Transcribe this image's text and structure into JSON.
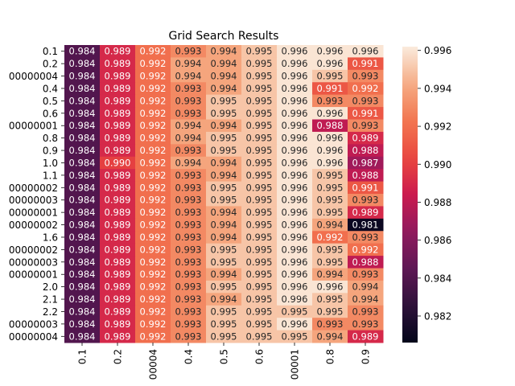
{
  "chart_data": {
    "type": "heatmap",
    "title": "Grid Search Results",
    "xlabel": "",
    "ylabel": "",
    "x_categories": [
      "0.1",
      "0.2",
      "00004",
      "0.4",
      "0.5",
      "0.6",
      "00001",
      "0.8",
      "0.9"
    ],
    "y_categories": [
      "0.1",
      "0.2",
      "00000004",
      "0.4",
      "0.5",
      "0.6",
      "00000001",
      "0.8",
      "0.9",
      "1.0",
      "1.1",
      "00000002",
      "00000003",
      "00000001",
      "00000002",
      "1.6",
      "00000002",
      "00000003",
      "00000001",
      "2.0",
      "2.1",
      "2.2",
      "00000003",
      "00000004"
    ],
    "values": [
      [
        0.984,
        0.989,
        0.992,
        0.993,
        0.994,
        0.995,
        0.996,
        0.996,
        0.996
      ],
      [
        0.984,
        0.989,
        0.992,
        0.994,
        0.994,
        0.995,
        0.996,
        0.996,
        0.991
      ],
      [
        0.984,
        0.989,
        0.992,
        0.994,
        0.994,
        0.995,
        0.996,
        0.995,
        0.993
      ],
      [
        0.984,
        0.989,
        0.992,
        0.993,
        0.994,
        0.995,
        0.996,
        0.991,
        0.992
      ],
      [
        0.984,
        0.989,
        0.992,
        0.993,
        0.995,
        0.995,
        0.996,
        0.993,
        0.993
      ],
      [
        0.984,
        0.989,
        0.992,
        0.993,
        0.995,
        0.995,
        0.996,
        0.996,
        0.991
      ],
      [
        0.984,
        0.989,
        0.992,
        0.994,
        0.994,
        0.995,
        0.996,
        0.988,
        0.993
      ],
      [
        0.984,
        0.989,
        0.992,
        0.994,
        0.995,
        0.995,
        0.996,
        0.996,
        0.989
      ],
      [
        0.984,
        0.989,
        0.992,
        0.993,
        0.995,
        0.995,
        0.996,
        0.996,
        0.988
      ],
      [
        0.984,
        0.99,
        0.992,
        0.994,
        0.994,
        0.995,
        0.996,
        0.996,
        0.987
      ],
      [
        0.984,
        0.989,
        0.992,
        0.993,
        0.994,
        0.995,
        0.996,
        0.995,
        0.988
      ],
      [
        0.984,
        0.989,
        0.992,
        0.993,
        0.995,
        0.995,
        0.996,
        0.995,
        0.991
      ],
      [
        0.984,
        0.989,
        0.992,
        0.993,
        0.995,
        0.995,
        0.996,
        0.995,
        0.993
      ],
      [
        0.984,
        0.989,
        0.992,
        0.993,
        0.994,
        0.995,
        0.996,
        0.995,
        0.989
      ],
      [
        0.984,
        0.989,
        0.992,
        0.993,
        0.994,
        0.995,
        0.996,
        0.994,
        0.981
      ],
      [
        0.984,
        0.989,
        0.992,
        0.993,
        0.994,
        0.995,
        0.996,
        0.992,
        0.993
      ],
      [
        0.984,
        0.989,
        0.992,
        0.993,
        0.995,
        0.995,
        0.996,
        0.995,
        0.992
      ],
      [
        0.984,
        0.989,
        0.992,
        0.993,
        0.995,
        0.995,
        0.996,
        0.995,
        0.988
      ],
      [
        0.984,
        0.989,
        0.992,
        0.993,
        0.994,
        0.995,
        0.996,
        0.994,
        0.993
      ],
      [
        0.984,
        0.989,
        0.992,
        0.993,
        0.995,
        0.995,
        0.996,
        0.996,
        0.994
      ],
      [
        0.984,
        0.989,
        0.992,
        0.993,
        0.994,
        0.995,
        0.996,
        0.995,
        0.994
      ],
      [
        0.984,
        0.989,
        0.992,
        0.993,
        0.995,
        0.995,
        0.995,
        0.995,
        0.993
      ],
      [
        0.984,
        0.989,
        0.992,
        0.993,
        0.995,
        0.995,
        0.996,
        0.993,
        0.993
      ],
      [
        0.984,
        0.989,
        0.992,
        0.993,
        0.995,
        0.995,
        0.995,
        0.994,
        0.989
      ]
    ],
    "colorbar": {
      "range": [
        0.9806,
        0.9962
      ],
      "ticks": [
        "0.982",
        "0.984",
        "0.986",
        "0.988",
        "0.990",
        "0.992",
        "0.994",
        "0.996"
      ],
      "colormap": "rocket"
    },
    "grid": false
  }
}
